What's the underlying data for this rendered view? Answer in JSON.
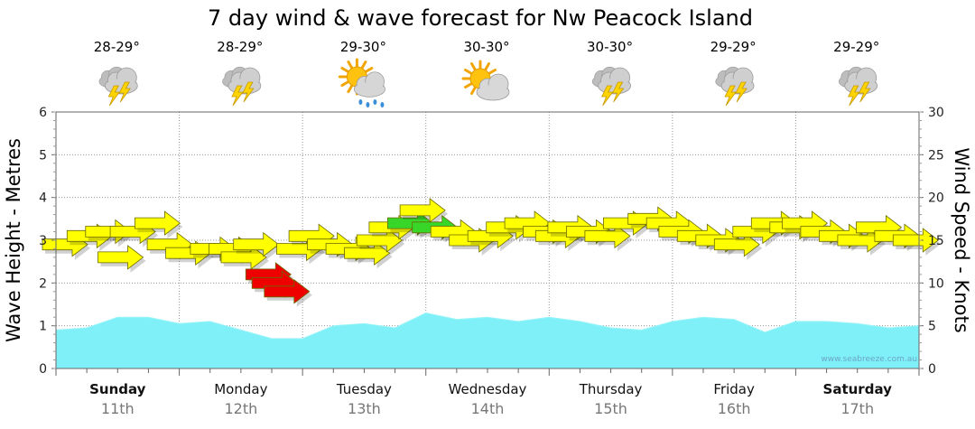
{
  "chart_data": {
    "type": "area",
    "title": "7 day wind & wave forecast for Nw Peacock Island",
    "ylabel": "Wave Height - Metres",
    "y2label": "Wind Speed - Knots",
    "ylim": [
      0,
      6
    ],
    "y2lim": [
      0,
      30
    ],
    "yticks": [
      "0",
      "1",
      "2",
      "3",
      "4",
      "5",
      "6"
    ],
    "y2ticks": [
      "0",
      "5",
      "10",
      "15",
      "20",
      "25",
      "30"
    ],
    "grid": true,
    "watermark": "www.seabreeze.com.au",
    "days": [
      {
        "name": "Sunday",
        "date": "11th",
        "bold": true,
        "temp": "28-29°",
        "icon": "storm-icon"
      },
      {
        "name": "Monday",
        "date": "12th",
        "bold": false,
        "temp": "28-29°",
        "icon": "storm-icon"
      },
      {
        "name": "Tuesday",
        "date": "13th",
        "bold": false,
        "temp": "29-30°",
        "icon": "sun-rain-icon"
      },
      {
        "name": "Wednesday",
        "date": "14th",
        "bold": false,
        "temp": "30-30°",
        "icon": "sun-cloud-icon"
      },
      {
        "name": "Thursday",
        "date": "15th",
        "bold": false,
        "temp": "30-30°",
        "icon": "storm-icon"
      },
      {
        "name": "Friday",
        "date": "16th",
        "bold": false,
        "temp": "29-29°",
        "icon": "storm-icon"
      },
      {
        "name": "Saturday",
        "date": "17th",
        "bold": true,
        "temp": "29-29°",
        "icon": "storm-icon"
      }
    ],
    "wave_series": {
      "name": "Wave Height",
      "unit": "m",
      "color": "#80f0f8",
      "x_days": [
        0,
        0.25,
        0.5,
        0.75,
        1.0,
        1.25,
        1.5,
        1.75,
        2.0,
        2.25,
        2.5,
        2.75,
        3.0,
        3.25,
        3.5,
        3.75,
        4.0,
        4.25,
        4.5,
        4.75,
        5.0,
        5.25,
        5.5,
        5.75,
        6.0,
        6.25,
        6.5,
        6.75,
        7.0
      ],
      "values": [
        0.9,
        0.95,
        1.2,
        1.2,
        1.05,
        1.1,
        0.9,
        0.7,
        0.7,
        1.0,
        1.05,
        0.95,
        1.3,
        1.15,
        1.2,
        1.1,
        1.2,
        1.1,
        0.95,
        0.9,
        1.1,
        1.2,
        1.15,
        0.85,
        1.1,
        1.1,
        1.05,
        0.95,
        1.0
      ]
    },
    "wind_series": {
      "name": "Wind Speed",
      "unit": "knots",
      "direction": "easterly (arrows pointing east)",
      "colors": {
        "light": "#39d62a",
        "moderate": "#ffff00",
        "strong": "#ee0000"
      },
      "x_days": [
        0.0,
        0.2,
        0.35,
        0.45,
        0.55,
        0.75,
        0.85,
        1.0,
        1.2,
        1.35,
        1.45,
        1.55,
        1.65,
        1.7,
        1.8,
        1.9,
        2.0,
        2.15,
        2.3,
        2.45,
        2.55,
        2.65,
        2.8,
        2.9,
        3.0,
        3.15,
        3.3,
        3.45,
        3.6,
        3.75,
        3.9,
        4.0,
        4.1,
        4.25,
        4.4,
        4.55,
        4.75,
        4.9,
        5.0,
        5.15,
        5.3,
        5.45,
        5.6,
        5.75,
        5.9,
        6.0,
        6.15,
        6.3,
        6.45,
        6.6,
        6.75,
        6.9
      ],
      "values": [
        14.5,
        15.5,
        16,
        13,
        16,
        17,
        14.5,
        13.5,
        14,
        14,
        13,
        14.5,
        11,
        10,
        9,
        14,
        15.5,
        14.5,
        14,
        13.5,
        15,
        16.5,
        17,
        18.5,
        16.5,
        16,
        15,
        15.5,
        16.5,
        17,
        16,
        15.5,
        16.5,
        16,
        15.5,
        17,
        17.5,
        17,
        16,
        15.5,
        15,
        14.5,
        16,
        17,
        16.5,
        17,
        16,
        15.5,
        15,
        16.5,
        15.5,
        15
      ],
      "strength": [
        "moderate",
        "moderate",
        "moderate",
        "moderate",
        "moderate",
        "moderate",
        "moderate",
        "moderate",
        "moderate",
        "moderate",
        "moderate",
        "moderate",
        "strong",
        "strong",
        "strong",
        "moderate",
        "moderate",
        "moderate",
        "moderate",
        "moderate",
        "moderate",
        "moderate",
        "light",
        "moderate",
        "light",
        "moderate",
        "moderate",
        "moderate",
        "moderate",
        "moderate",
        "moderate",
        "moderate",
        "moderate",
        "moderate",
        "moderate",
        "moderate",
        "moderate",
        "moderate",
        "moderate",
        "moderate",
        "moderate",
        "moderate",
        "moderate",
        "moderate",
        "moderate",
        "moderate",
        "moderate",
        "moderate",
        "moderate",
        "moderate",
        "moderate",
        "moderate"
      ]
    }
  }
}
